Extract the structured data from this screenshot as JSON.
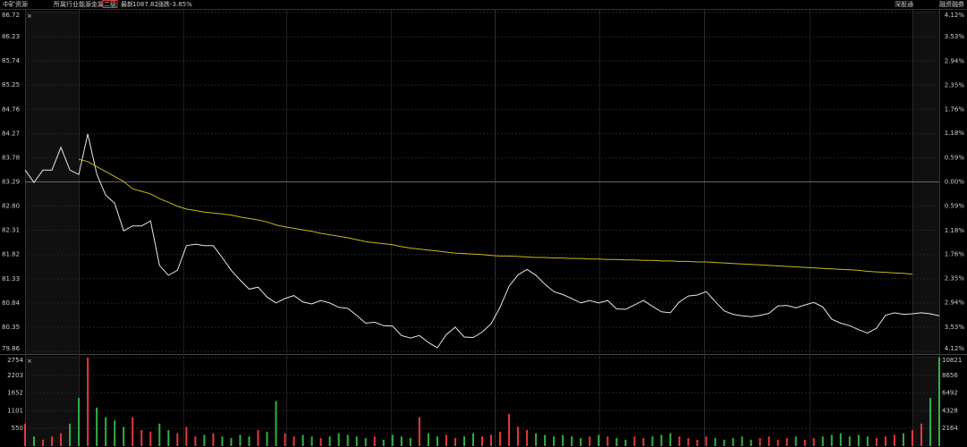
{
  "header": {
    "name": "中矿资源",
    "industry_label": "所属行业",
    "industry": "能源金属",
    "badge": "二级",
    "last_label": "最新",
    "last": "1087.82",
    "change_label": "涨跌",
    "change": "-3.85%",
    "right_links": [
      "深股通",
      "融资融券"
    ]
  },
  "chart_data": {
    "type": "line",
    "ylim": [
      79.86,
      86.72
    ],
    "yticks": [
      {
        "value": 86.72,
        "label": "86.72"
      },
      {
        "value": 86.23,
        "label": "86.23"
      },
      {
        "value": 85.74,
        "label": "85.74"
      },
      {
        "value": 85.25,
        "label": "85.25"
      },
      {
        "value": 84.76,
        "label": "84.76"
      },
      {
        "value": 84.27,
        "label": "84.27"
      },
      {
        "value": 83.78,
        "label": "83.78"
      },
      {
        "value": 83.29,
        "label": "83.29"
      },
      {
        "value": 82.8,
        "label": "82.80"
      },
      {
        "value": 82.31,
        "label": "82.31"
      },
      {
        "value": 81.82,
        "label": "81.82"
      },
      {
        "value": 81.33,
        "label": "81.33"
      },
      {
        "value": 80.84,
        "label": "80.84"
      },
      {
        "value": 80.35,
        "label": "80.35"
      },
      {
        "value": 79.86,
        "label": "79.86"
      }
    ],
    "y2lim": [
      -4.12,
      4.12
    ],
    "y2ticks": [
      {
        "value": 4.12,
        "label": "4.12%"
      },
      {
        "value": 3.53,
        "label": "3.53%"
      },
      {
        "value": 2.94,
        "label": "2.94%"
      },
      {
        "value": 2.35,
        "label": "2.35%"
      },
      {
        "value": 1.76,
        "label": "1.76%"
      },
      {
        "value": 1.18,
        "label": "1.18%"
      },
      {
        "value": 0.59,
        "label": "0.59%"
      },
      {
        "value": 0,
        "label": "0.00%"
      },
      {
        "value": -0.59,
        "label": "0.59%"
      },
      {
        "value": -1.18,
        "label": "1.18%"
      },
      {
        "value": -1.76,
        "label": "1.76%"
      },
      {
        "value": -2.35,
        "label": "2.35%"
      },
      {
        "value": -2.94,
        "label": "2.94%"
      },
      {
        "value": -3.53,
        "label": "3.53%"
      },
      {
        "value": -4.12,
        "label": "4.12%"
      }
    ],
    "grid": true,
    "up_color": "#e8383d",
    "down_color": "#2fb344",
    "series": [
      {
        "color": "#e6e6e6",
        "values": [
          83.53,
          83.28,
          83.53,
          83.53,
          83.99,
          83.53,
          83.44,
          84.26,
          83.45,
          83.02,
          82.86,
          82.3,
          82.4,
          82.4,
          82.5,
          81.6,
          81.4,
          81.5,
          82.0,
          82.03,
          82.0,
          82.0,
          81.76,
          81.5,
          81.3,
          81.12,
          81.16,
          80.96,
          80.84,
          80.93,
          80.99,
          80.86,
          80.82,
          80.89,
          80.84,
          80.75,
          80.73,
          80.59,
          80.43,
          80.45,
          80.38,
          80.37,
          80.18,
          80.13,
          80.18,
          80.04,
          79.93,
          80.2,
          80.35,
          80.15,
          80.14,
          80.25,
          80.42,
          80.75,
          81.18,
          81.41,
          81.52,
          81.4,
          81.22,
          81.07,
          81.01,
          80.93,
          80.84,
          80.89,
          80.84,
          80.89,
          80.72,
          80.71,
          80.8,
          80.89,
          80.77,
          80.66,
          80.64,
          80.86,
          80.98,
          81.0,
          81.07,
          80.87,
          80.68,
          80.61,
          80.58,
          80.56,
          80.59,
          80.63,
          80.78,
          80.79,
          80.74,
          80.8,
          80.85,
          80.76,
          80.51,
          80.43,
          80.38,
          80.3,
          80.23,
          80.33,
          80.59,
          80.64,
          80.61,
          80.62,
          80.64,
          80.62,
          80.58
        ]
      },
      {
        "color": "#c9b81a",
        "values": [
          null,
          null,
          null,
          null,
          null,
          null,
          83.75,
          83.7,
          83.6,
          83.5,
          83.4,
          83.3,
          83.15,
          83.1,
          83.05,
          82.95,
          82.88,
          82.8,
          82.74,
          82.71,
          82.68,
          82.66,
          82.64,
          82.62,
          82.58,
          82.55,
          82.52,
          82.48,
          82.42,
          82.38,
          82.35,
          82.32,
          82.29,
          82.25,
          82.22,
          82.19,
          82.16,
          82.12,
          82.08,
          82.06,
          82.04,
          82.02,
          81.98,
          81.95,
          81.93,
          81.91,
          81.89,
          81.87,
          81.85,
          81.84,
          81.83,
          81.82,
          81.8,
          81.79,
          81.79,
          81.78,
          81.77,
          81.76,
          81.76,
          81.75,
          81.75,
          81.74,
          81.74,
          81.73,
          81.73,
          81.72,
          81.72,
          81.71,
          81.71,
          81.7,
          81.7,
          81.69,
          81.69,
          81.68,
          81.68,
          81.67,
          81.67,
          81.66,
          81.65,
          81.64,
          81.63,
          81.62,
          81.61,
          81.6,
          81.59,
          81.58,
          81.57,
          81.56,
          81.55,
          81.54,
          81.53,
          81.52,
          81.51,
          81.5,
          81.48,
          81.47,
          81.46,
          81.45,
          81.44,
          81.42,
          null,
          null,
          null
        ]
      }
    ],
    "volume": {
      "ylim": [
        0,
        2754
      ],
      "yticks": [
        2754,
        2203,
        1652,
        1101,
        550
      ],
      "y2lim": [
        0,
        10821
      ],
      "y2ticks": [
        10821,
        8656,
        6492,
        4328,
        2164
      ],
      "values": [
        700,
        300,
        200,
        300,
        400,
        700,
        1500,
        2754,
        1200,
        900,
        800,
        600,
        900,
        500,
        450,
        700,
        500,
        400,
        600,
        300,
        350,
        400,
        300,
        250,
        350,
        300,
        500,
        450,
        1400,
        400,
        300,
        350,
        300,
        250,
        300,
        400,
        350,
        300,
        250,
        300,
        200,
        350,
        300,
        250,
        900,
        400,
        300,
        350,
        250,
        300,
        400,
        300,
        350,
        450,
        1000,
        600,
        500,
        400,
        350,
        300,
        350,
        300,
        250,
        300,
        350,
        300,
        250,
        200,
        300,
        250,
        300,
        350,
        400,
        300,
        250,
        200,
        300,
        250,
        200,
        250,
        300,
        200,
        250,
        300,
        200,
        250,
        300,
        200,
        250,
        300,
        350,
        400,
        300,
        350,
        300,
        250,
        300,
        350,
        400,
        500,
        700,
        1500,
        2754
      ]
    }
  }
}
